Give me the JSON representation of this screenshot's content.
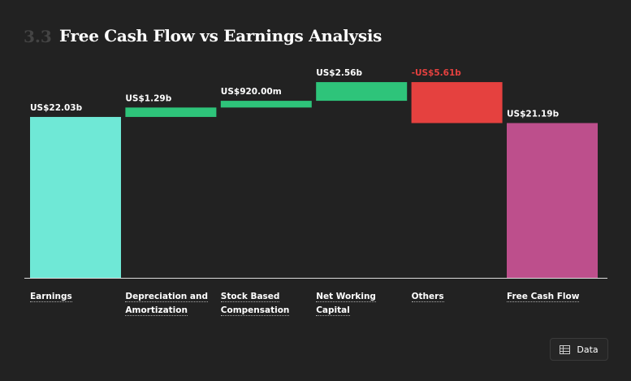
{
  "section": "3.3",
  "chart_data": {
    "type": "waterfall",
    "title": "Free Cash Flow vs Earnings Analysis",
    "categories": [
      "Earnings",
      "Depreciation and Amortization",
      "Stock Based Compensation",
      "Net Working Capital",
      "Others",
      "Free Cash Flow"
    ],
    "values": [
      22.03,
      1.29,
      0.92,
      2.56,
      -5.61,
      21.19
    ],
    "value_labels": [
      "US$22.03b",
      "US$1.29b",
      "US$920.00m",
      "US$2.56b",
      "-US$5.61b",
      "US$21.19b"
    ],
    "colors": [
      "#6fe8d6",
      "#2ec47a",
      "#2ec47a",
      "#2ec47a",
      "#e5413f",
      "#bd4f8c"
    ]
  },
  "button": {
    "label": "Data"
  }
}
